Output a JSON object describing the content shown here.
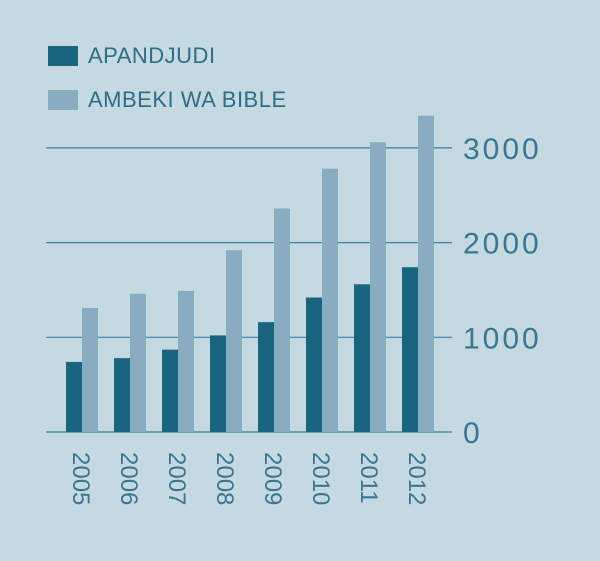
{
  "chart_data": {
    "type": "bar",
    "title": "",
    "xlabel": "",
    "ylabel": "",
    "categories": [
      "2005",
      "2006",
      "2007",
      "2008",
      "2009",
      "2010",
      "2011",
      "2012"
    ],
    "series": [
      {
        "name": "APANDJUDI",
        "color": "#19657f",
        "values": [
          740,
          780,
          870,
          1020,
          1160,
          1420,
          1560,
          1740
        ]
      },
      {
        "name": "AMBEKI WA BIBLE",
        "color": "#89adc0",
        "values": [
          1310,
          1460,
          1490,
          1920,
          2360,
          2780,
          3060,
          3340
        ]
      }
    ],
    "yticks": [
      "0",
      "1000",
      "2000",
      "3000"
    ],
    "ylim": [
      0,
      3500
    ],
    "y_axis_side": "right",
    "grid": true,
    "legend_position": "top-left",
    "x_tick_rotation": "vertical"
  }
}
